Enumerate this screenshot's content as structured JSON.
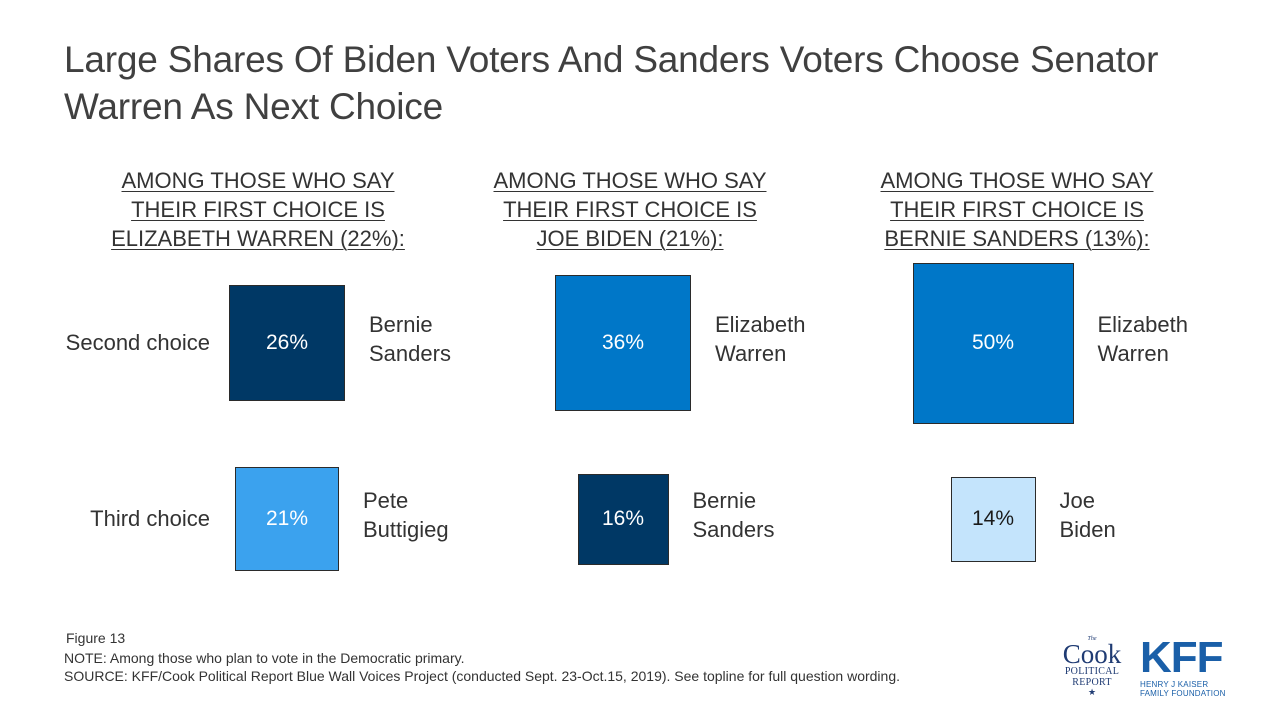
{
  "title": "Large Shares Of Biden Voters And Sanders Voters Choose Senator Warren As Next Choice",
  "row_labels": [
    "Second choice",
    "Third choice"
  ],
  "chart_data": {
    "type": "proportional-square",
    "title": "Large Shares Of Biden Voters And Sanders Voters Choose Senator Warren As Next Choice",
    "rows": [
      "Second choice",
      "Third choice"
    ],
    "panels": [
      {
        "header": [
          "AMONG THOSE WHO SAY",
          "THEIR FIRST CHOICE IS",
          "ELIZABETH WARREN (22%):"
        ],
        "items": [
          {
            "row": "Second choice",
            "name": [
              "Bernie",
              "Sanders"
            ],
            "value": 26,
            "label": "26%",
            "color": "#003865"
          },
          {
            "row": "Third choice",
            "name": [
              "Pete",
              "Buttigieg"
            ],
            "value": 21,
            "label": "21%",
            "color": "#3ba2ee"
          }
        ]
      },
      {
        "header": [
          "AMONG THOSE WHO SAY",
          "THEIR FIRST CHOICE IS",
          "JOE BIDEN (21%):"
        ],
        "items": [
          {
            "row": "Second choice",
            "name": [
              "Elizabeth",
              "Warren"
            ],
            "value": 36,
            "label": "36%",
            "color": "#0077c8"
          },
          {
            "row": "Third choice",
            "name": [
              "Bernie",
              "Sanders"
            ],
            "value": 16,
            "label": "16%",
            "color": "#003865"
          }
        ]
      },
      {
        "header": [
          "AMONG THOSE WHO SAY",
          "THEIR FIRST CHOICE IS",
          "BERNIE SANDERS (13%):"
        ],
        "items": [
          {
            "row": "Second choice",
            "name": [
              "Elizabeth",
              "Warren"
            ],
            "value": 50,
            "label": "50%",
            "color": "#0077c8"
          },
          {
            "row": "Third choice",
            "name": [
              "Joe",
              "Biden"
            ],
            "value": 14,
            "label": "14%",
            "color": "#c4e4fc",
            "dark_text": true
          }
        ]
      }
    ]
  },
  "footer": {
    "figure": "Figure 13",
    "note": "NOTE: Among those who plan to vote in the Democratic primary.",
    "source": "SOURCE: KFF/Cook Political Report Blue Wall Voices Project (conducted  Sept. 23-Oct.15, 2019). See topline for full question wording."
  },
  "logos": {
    "cook": {
      "top": "The",
      "name": "Cook",
      "line1": "POLITICAL",
      "line2": "REPORT",
      "star": "★"
    },
    "kff": {
      "mark": "KFF",
      "line1": "HENRY J KAISER",
      "line2": "FAMILY FOUNDATION"
    }
  }
}
